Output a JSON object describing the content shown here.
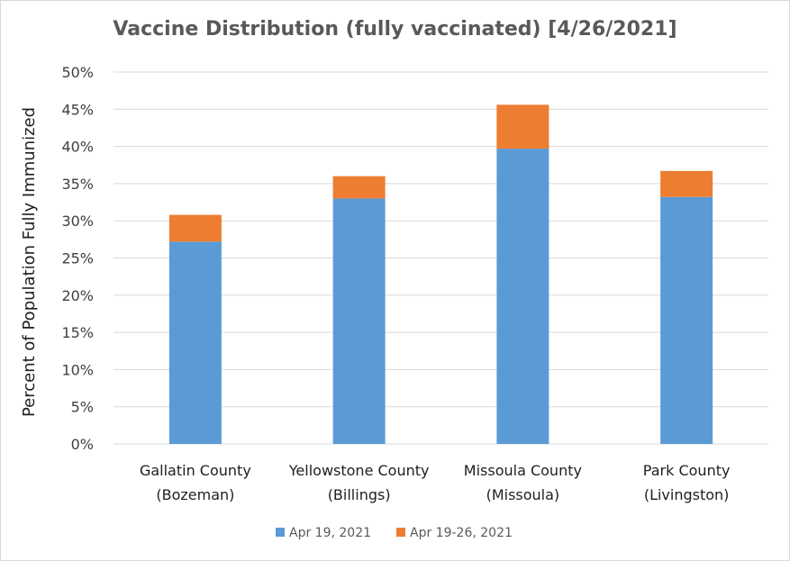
{
  "chart_data": {
    "type": "bar",
    "stacked": true,
    "title": "Vaccine Distribution (fully vaccinated) [4/26/2021]",
    "ylabel": "Percent of Population Fully Immunized",
    "xlabel": "",
    "ylim": [
      0,
      50
    ],
    "yticks": [
      "0%",
      "5%",
      "10%",
      "15%",
      "20%",
      "25%",
      "30%",
      "35%",
      "40%",
      "45%",
      "50%"
    ],
    "grid": true,
    "legend_position": "bottom",
    "categories": [
      [
        "Gallatin County",
        "(Bozeman)"
      ],
      [
        "Yellowstone County",
        "(Billings)"
      ],
      [
        "Missoula County",
        "(Missoula)"
      ],
      [
        "Park County",
        "(Livingston)"
      ]
    ],
    "series": [
      {
        "name": "Apr 19, 2021",
        "color": "#5b9bd5",
        "values": [
          27.2,
          33.0,
          39.7,
          33.2
        ]
      },
      {
        "name": "Apr 19-26, 2021",
        "color": "#ed7d31",
        "values": [
          3.6,
          3.0,
          5.9,
          3.5
        ]
      }
    ]
  }
}
